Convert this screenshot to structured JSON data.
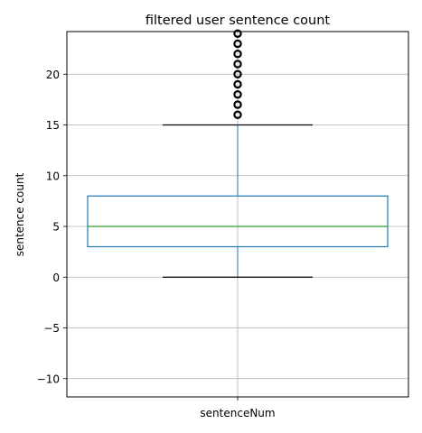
{
  "chart_data": {
    "type": "box",
    "title": "filtered user sentence count",
    "xlabel": "",
    "ylabel": "sentence count",
    "categories": [
      "sentenceNum"
    ],
    "ylim": [
      -11.8,
      24.2
    ],
    "yticks": [
      -10,
      -5,
      0,
      5,
      10,
      15,
      20
    ],
    "ytick_labels": [
      "−10",
      "−5",
      "0",
      "5",
      "10",
      "15",
      "20"
    ],
    "grid": true,
    "boxes": [
      {
        "name": "sentenceNum",
        "whisker_low": 0,
        "q1": 3,
        "median": 5,
        "q3": 8,
        "whisker_high": 15,
        "outliers": [
          16,
          17,
          18,
          19,
          20,
          21,
          22,
          23,
          24
        ]
      }
    ],
    "colors": {
      "box": "#1f77b4",
      "median": "#2ca02c",
      "caps": "#000000",
      "outlier_edge": "#000000",
      "grid": "#b0b0b0"
    }
  }
}
